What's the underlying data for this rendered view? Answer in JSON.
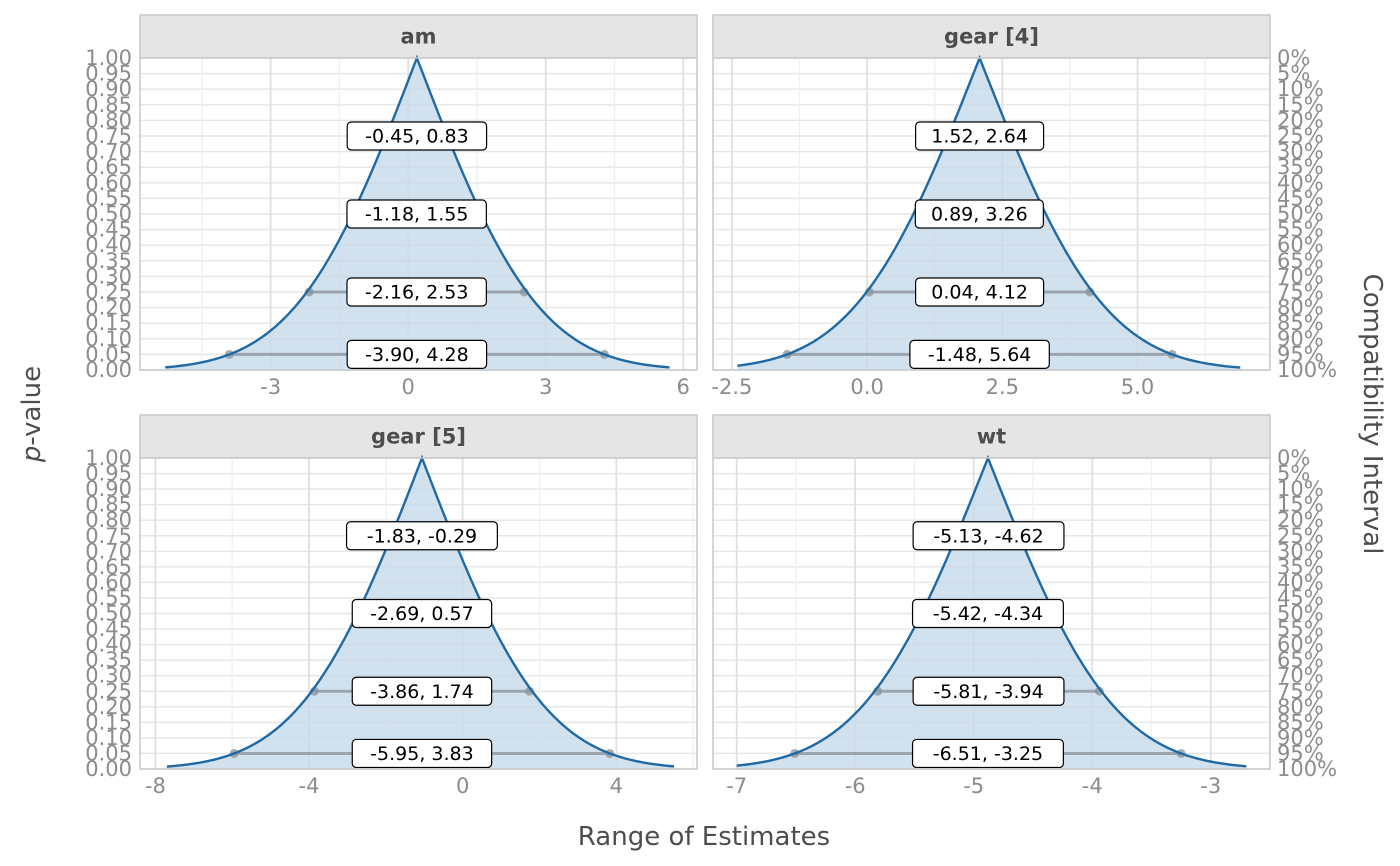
{
  "chart_data": {
    "type": "area",
    "xlabel": "Range of Estimates",
    "ylabel_italic": "p",
    "ylabel_rest": "-value",
    "y2label": "Compatibility Interval",
    "ylim": [
      0,
      1
    ],
    "y_ticks": [
      "0.00",
      "0.05",
      "0.10",
      "0.15",
      "0.20",
      "0.25",
      "0.30",
      "0.35",
      "0.40",
      "0.45",
      "0.50",
      "0.55",
      "0.60",
      "0.65",
      "0.70",
      "0.75",
      "0.80",
      "0.85",
      "0.90",
      "0.95",
      "1.00"
    ],
    "y2_ticks": [
      "100%",
      "95%",
      "90%",
      "85%",
      "80%",
      "75%",
      "70%",
      "65%",
      "60%",
      "55%",
      "50%",
      "45%",
      "40%",
      "35%",
      "30%",
      "25%",
      "20%",
      "15%",
      "10%",
      "5%",
      "0%"
    ],
    "grid": true,
    "colors": {
      "curve": "#1f6aa5",
      "fill": "#c7d9ea",
      "interval": "#8a9299",
      "strip": "#e5e5e5"
    },
    "panels": [
      {
        "title": "am",
        "xlim": [
          -5.85,
          6.3
        ],
        "x_ticks": [
          {
            "value": -3,
            "label": "-3"
          },
          {
            "value": 0,
            "label": "0"
          },
          {
            "value": 3,
            "label": "3"
          },
          {
            "value": 6,
            "label": "6"
          }
        ],
        "estimate": 0.19,
        "curve_range": [
          -5.3,
          5.7
        ],
        "intervals": [
          {
            "p": 0.75,
            "lower": -0.45,
            "upper": 0.83,
            "label": "-0.45, 0.83"
          },
          {
            "p": 0.5,
            "lower": -1.18,
            "upper": 1.55,
            "label": "-1.18, 1.55"
          },
          {
            "p": 0.25,
            "lower": -2.16,
            "upper": 2.53,
            "label": "-2.16, 2.53"
          },
          {
            "p": 0.05,
            "lower": -3.9,
            "upper": 4.28,
            "label": "-3.90, 4.28"
          }
        ]
      },
      {
        "title": "gear [4]",
        "xlim": [
          -2.85,
          7.45
        ],
        "x_ticks": [
          {
            "value": -2.5,
            "label": "-2.5"
          },
          {
            "value": 0,
            "label": "0.0"
          },
          {
            "value": 2.5,
            "label": "2.5"
          },
          {
            "value": 5,
            "label": "5.0"
          }
        ],
        "estimate": 2.08,
        "curve_range": [
          -2.4,
          6.9
        ],
        "intervals": [
          {
            "p": 0.75,
            "lower": 1.52,
            "upper": 2.64,
            "label": "1.52, 2.64"
          },
          {
            "p": 0.5,
            "lower": 0.89,
            "upper": 3.26,
            "label": "0.89, 3.26"
          },
          {
            "p": 0.25,
            "lower": 0.04,
            "upper": 4.12,
            "label": "0.04, 4.12"
          },
          {
            "p": 0.05,
            "lower": -1.48,
            "upper": 5.64,
            "label": "-1.48, 5.64"
          }
        ]
      },
      {
        "title": "gear [5]",
        "xlim": [
          -8.4,
          6.1
        ],
        "x_ticks": [
          {
            "value": -8,
            "label": "-8"
          },
          {
            "value": -4,
            "label": "-4"
          },
          {
            "value": 0,
            "label": "0"
          },
          {
            "value": 4,
            "label": "4"
          }
        ],
        "estimate": -1.06,
        "curve_range": [
          -7.7,
          5.5
        ],
        "intervals": [
          {
            "p": 0.75,
            "lower": -1.83,
            "upper": -0.29,
            "label": "-1.83, -0.29"
          },
          {
            "p": 0.5,
            "lower": -2.69,
            "upper": 0.57,
            "label": "-2.69, 0.57"
          },
          {
            "p": 0.25,
            "lower": -3.86,
            "upper": 1.74,
            "label": "-3.86, 1.74"
          },
          {
            "p": 0.05,
            "lower": -5.95,
            "upper": 3.83,
            "label": "-5.95, 3.83"
          }
        ]
      },
      {
        "title": "wt",
        "xlim": [
          -7.2,
          -2.5
        ],
        "x_ticks": [
          {
            "value": -7,
            "label": "-7"
          },
          {
            "value": -6,
            "label": "-6"
          },
          {
            "value": -5,
            "label": "-5"
          },
          {
            "value": -4,
            "label": "-4"
          },
          {
            "value": -3,
            "label": "-3"
          }
        ],
        "estimate": -4.88,
        "curve_range": [
          -7.0,
          -2.7
        ],
        "intervals": [
          {
            "p": 0.75,
            "lower": -5.13,
            "upper": -4.62,
            "label": "-5.13, -4.62"
          },
          {
            "p": 0.5,
            "lower": -5.42,
            "upper": -4.34,
            "label": "-5.42, -4.34"
          },
          {
            "p": 0.25,
            "lower": -5.81,
            "upper": -3.94,
            "label": "-5.81, -3.94"
          },
          {
            "p": 0.05,
            "lower": -6.51,
            "upper": -3.25,
            "label": "-6.51, -3.25"
          }
        ]
      }
    ]
  }
}
